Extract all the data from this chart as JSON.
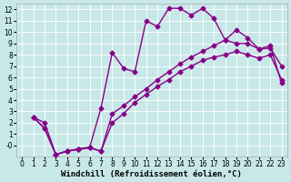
{
  "background_color": "#c8e8e8",
  "grid_color": "#ffffff",
  "line_color": "#880088",
  "marker": "D",
  "markersize": 2.5,
  "linewidth": 1.0,
  "xlabel": "Windchill (Refroidissement éolien,°C)",
  "xlabel_fontsize": 6.5,
  "tick_fontsize": 5.5,
  "xlim": [
    -0.5,
    23.5
  ],
  "ylim": [
    -1,
    12.5
  ],
  "xticks": [
    0,
    1,
    2,
    3,
    4,
    5,
    6,
    7,
    8,
    9,
    10,
    11,
    12,
    13,
    14,
    15,
    16,
    17,
    18,
    19,
    20,
    21,
    22,
    23
  ],
  "yticks": [
    0,
    1,
    2,
    3,
    4,
    5,
    6,
    7,
    8,
    9,
    10,
    11,
    12
  ],
  "series": [
    {
      "x": [
        1,
        2,
        3,
        4,
        5,
        6,
        7,
        8,
        9,
        10,
        11,
        12,
        13,
        14,
        15,
        16,
        17,
        18,
        19,
        20,
        21,
        22,
        23
      ],
      "y": [
        2.5,
        2.0,
        -0.8,
        -0.5,
        -0.3,
        -0.15,
        3.3,
        8.2,
        6.8,
        6.5,
        11.0,
        10.5,
        12.1,
        12.1,
        11.5,
        12.1,
        11.2,
        9.3,
        10.2,
        9.5,
        8.5,
        8.6,
        7.0
      ]
    },
    {
      "x": [
        1,
        2,
        3,
        4,
        5,
        6,
        7,
        8,
        9,
        10,
        11,
        12,
        13,
        14,
        15,
        16,
        17,
        18,
        19,
        20,
        21,
        22,
        23
      ],
      "y": [
        2.5,
        1.5,
        -0.8,
        -0.5,
        -0.35,
        -0.2,
        -0.5,
        2.8,
        3.5,
        4.3,
        5.0,
        5.8,
        6.5,
        7.2,
        7.8,
        8.3,
        8.8,
        9.3,
        9.0,
        9.0,
        8.5,
        8.8,
        5.5
      ]
    },
    {
      "x": [
        1,
        2,
        3,
        4,
        5,
        6,
        7,
        8,
        9,
        10,
        11,
        12,
        13,
        14,
        15,
        16,
        17,
        18,
        19,
        20,
        21,
        22,
        23
      ],
      "y": [
        2.5,
        1.5,
        -0.8,
        -0.5,
        -0.35,
        -0.2,
        -0.5,
        2.0,
        2.8,
        3.8,
        4.5,
        5.2,
        5.8,
        6.5,
        7.0,
        7.5,
        7.8,
        8.0,
        8.3,
        8.0,
        7.7,
        8.0,
        5.8
      ]
    }
  ]
}
